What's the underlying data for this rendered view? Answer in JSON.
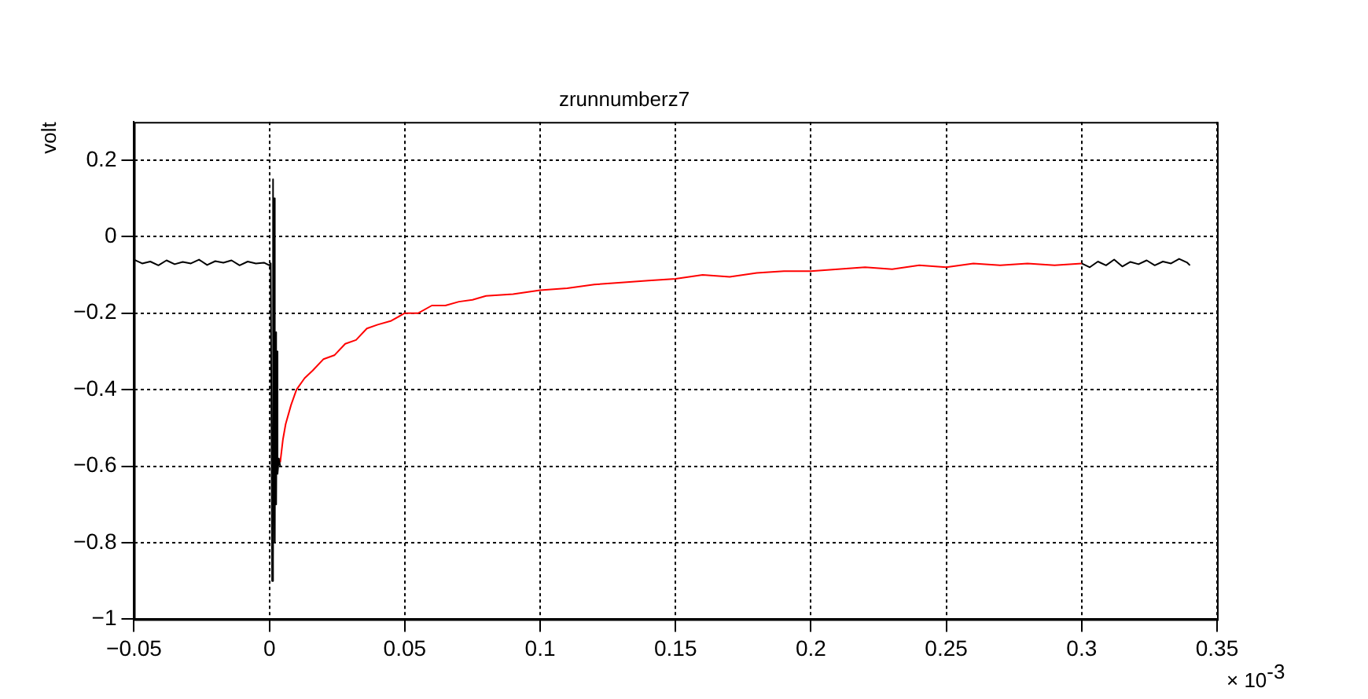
{
  "chart_data": {
    "type": "line",
    "title": "zrunnumberz7",
    "ylabel": "volt",
    "annotations": [
      "× 10$^{-3}$"
    ],
    "xlim": [
      -0.05,
      0.35
    ],
    "xticks": [
      {
        "value": -0.05,
        "label": "−0.05"
      },
      0,
      0.05,
      0.1,
      0.15,
      0.2,
      0.25,
      0.3,
      0.35
    ],
    "ylim": [
      -1,
      0.3
    ],
    "yticks": [
      {
        "value": -1,
        "label": "−1"
      },
      {
        "value": -0.8,
        "label": "−0.8"
      },
      {
        "value": -0.6,
        "label": "−0.6"
      },
      {
        "value": -0.4,
        "label": "−0.4"
      },
      {
        "value": -0.2,
        "label": "−0.2"
      },
      0,
      0.2
    ],
    "grid": true,
    "legend": false,
    "marker": "none",
    "line_style": "solid",
    "series": [
      {
        "color": "#000000",
        "x": [
          -0.05,
          -0.047,
          -0.044,
          -0.041,
          -0.038,
          -0.035,
          -0.032,
          -0.029,
          -0.026,
          -0.023,
          -0.02,
          -0.017,
          -0.014,
          -0.011,
          -0.008,
          -0.005,
          -0.002,
          0,
          0.0005,
          0.001,
          0.0012,
          0.0015,
          0.0018,
          0.002,
          0.0022,
          0.0025,
          0.0028,
          0.003,
          0.0035,
          0.004,
          null,
          0.3,
          0.303,
          0.306,
          0.309,
          0.312,
          0.315,
          0.318,
          0.321,
          0.324,
          0.327,
          0.33,
          0.333,
          0.336,
          0.339,
          0.34
        ],
        "values": [
          -0.06,
          -0.07,
          -0.065,
          -0.075,
          -0.062,
          -0.072,
          -0.066,
          -0.07,
          -0.06,
          -0.074,
          -0.064,
          -0.068,
          -0.062,
          -0.075,
          -0.065,
          -0.07,
          -0.068,
          -0.075,
          -0.07,
          -0.9,
          0.15,
          -0.85,
          0.1,
          -0.8,
          -0.25,
          -0.7,
          -0.3,
          -0.62,
          -0.58,
          -0.6,
          null,
          -0.07,
          -0.08,
          -0.065,
          -0.075,
          -0.06,
          -0.078,
          -0.066,
          -0.072,
          -0.062,
          -0.075,
          -0.065,
          -0.07,
          -0.058,
          -0.068,
          -0.075
        ]
      },
      {
        "color": "#ff0000",
        "x": [
          0.004,
          0.005,
          0.006,
          0.008,
          0.01,
          0.013,
          0.016,
          0.02,
          0.024,
          0.028,
          0.032,
          0.036,
          0.04,
          0.045,
          0.05,
          0.055,
          0.06,
          0.065,
          0.07,
          0.075,
          0.08,
          0.09,
          0.1,
          0.11,
          0.12,
          0.13,
          0.14,
          0.15,
          0.16,
          0.17,
          0.18,
          0.19,
          0.2,
          0.21,
          0.22,
          0.23,
          0.24,
          0.25,
          0.26,
          0.27,
          0.28,
          0.29,
          0.3
        ],
        "values": [
          -0.59,
          -0.53,
          -0.49,
          -0.44,
          -0.4,
          -0.37,
          -0.35,
          -0.32,
          -0.31,
          -0.28,
          -0.27,
          -0.24,
          -0.23,
          -0.22,
          -0.2,
          -0.2,
          -0.18,
          -0.18,
          -0.17,
          -0.165,
          -0.155,
          -0.15,
          -0.14,
          -0.135,
          -0.125,
          -0.12,
          -0.115,
          -0.11,
          -0.1,
          -0.105,
          -0.095,
          -0.09,
          -0.09,
          -0.085,
          -0.08,
          -0.085,
          -0.075,
          -0.08,
          -0.07,
          -0.075,
          -0.07,
          -0.075,
          -0.07
        ]
      }
    ]
  }
}
